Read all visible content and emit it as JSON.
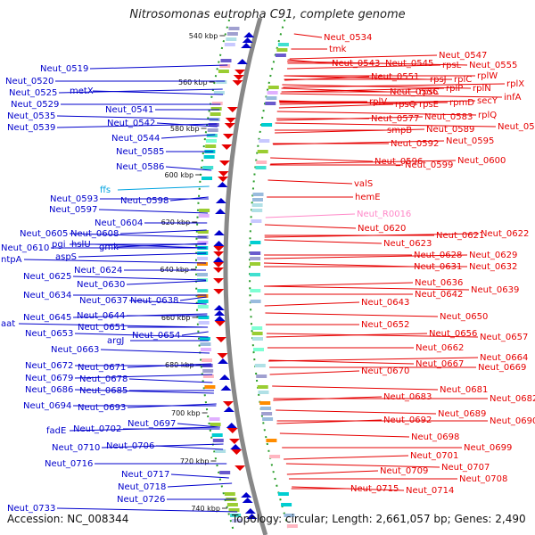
{
  "header": {
    "title": "Nitrosomonas eutropha C91, complete genome"
  },
  "footer": {
    "accession": "Accession: NC_008344",
    "topology": "Topology: circular; Length: 2,661,057 bp; Genes: 2,490"
  },
  "colors": {
    "left": "#0000cc",
    "right": "#e60000",
    "ffs": "#00a3e0",
    "rna": "#ff88c8",
    "ring": "#888888",
    "dots": "#2a9d2a"
  },
  "ticks": [
    "540 kbp",
    "560 kbp",
    "580 kbp",
    "600 kbp",
    "620 kbp",
    "640 kbp",
    "660 kbp",
    "680 kbp",
    "700 kbp",
    "720 kbp",
    "740 kbp"
  ],
  "left_labels": [
    "Neut_0519",
    "Neut_0520",
    "metX",
    "Neut_0525",
    "Neut_0529",
    "Neut_0535",
    "Neut_0539",
    "Neut_0541",
    "Neut_0542",
    "Neut_0544",
    "Neut_0585",
    "Neut_0586",
    "ffs",
    "Neut_0593",
    "Neut_0597",
    "Neut_0598",
    "Neut_0604",
    "Neut_0605",
    "Neut_0608",
    "pgi",
    "hslU",
    "gmk",
    "Neut_0610",
    "ntpA",
    "aspS",
    "Neut_0624",
    "Neut_0625",
    "Neut_0630",
    "Neut_0634",
    "Neut_0637",
    "Neut_0638",
    "Neut_0644",
    "aat",
    "Neut_0645",
    "Neut_0651",
    "Neut_0653",
    "Neut_0654",
    "argJ",
    "Neut_0663",
    "Neut_0671",
    "Neut_0672",
    "Neut_0678",
    "Neut_0679",
    "Neut_0685",
    "Neut_0686",
    "Neut_0693",
    "Neut_0694",
    "Neut_0697",
    "fadE",
    "Neut_0702",
    "Neut_0706",
    "Neut_0710",
    "Neut_0716",
    "Neut_0717",
    "Neut_0718",
    "Neut_0726",
    "Neut_0733"
  ],
  "right_labels": [
    "Neut_0534",
    "tmk",
    "Neut_0547",
    "Neut_0543",
    "Neut_0545",
    "rpsL",
    "Neut_0555",
    "rplW",
    "Neut_0551",
    "rpsJ",
    "rplC",
    "rplX",
    "Neut_0556",
    "rpsC",
    "rplP",
    "rplN",
    "rplV",
    "rpsQ",
    "rpsE",
    "rpmD",
    "secY",
    "infA",
    "Neut_0577",
    "Neut_0583",
    "rplQ",
    "smpB",
    "Neut_0589",
    "Neut_0590",
    "Neut_0592",
    "Neut_0595",
    "Neut_0596",
    "Neut_0599",
    "Neut_0600",
    "valS",
    "hemE",
    "Neut_R0016",
    "Neut_0620",
    "Neut_0621",
    "Neut_0622",
    "Neut_0623",
    "Neut_0628",
    "Neut_0629",
    "Neut_0631",
    "Neut_0632",
    "Neut_0636",
    "Neut_0639",
    "Neut_0642",
    "Neut_0643",
    "Neut_0650",
    "Neut_0652",
    "Neut_0656",
    "Neut_0657",
    "Neut_0662",
    "Neut_0664",
    "Neut_0667",
    "Neut_0669",
    "Neut_0670",
    "Neut_0681",
    "Neut_0682",
    "Neut_0683",
    "Neut_0689",
    "Neut_0690",
    "Neut_0692",
    "Neut_0698",
    "Neut_0699",
    "Neut_0701",
    "Neut_0707",
    "Neut_0708",
    "Neut_0709",
    "Neut_0714",
    "Neut_0715"
  ]
}
